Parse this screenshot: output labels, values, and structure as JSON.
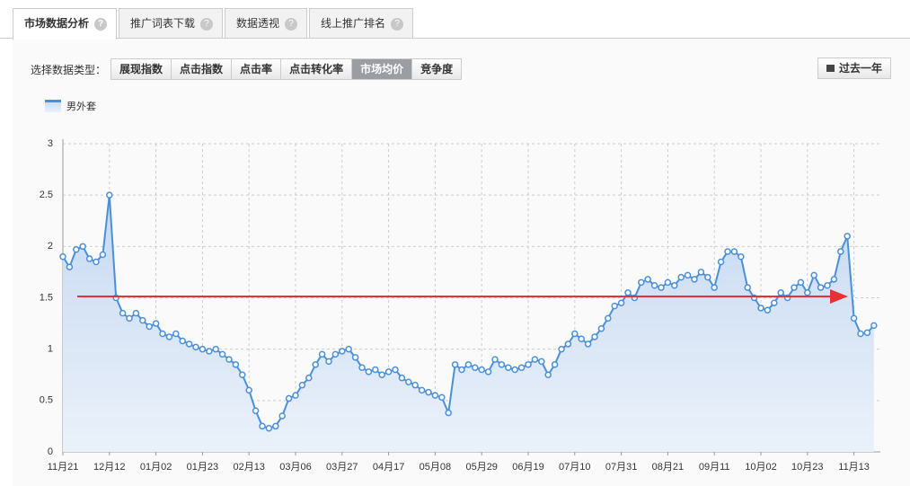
{
  "tabs": [
    "市场数据分析",
    "推广词表下载",
    "数据透视",
    "线上推广排名"
  ],
  "selector": {
    "label": "选择数据类型：",
    "buttons": [
      "展现指数",
      "点击指数",
      "点击率",
      "点击转化率",
      "市场均价",
      "竞争度"
    ],
    "active": 4,
    "period": "过去一年"
  },
  "chart_data": {
    "type": "line",
    "categories": [
      "11月21",
      null,
      null,
      null,
      null,
      null,
      null,
      "12月12",
      null,
      null,
      null,
      null,
      null,
      null,
      "01月02",
      null,
      null,
      null,
      null,
      null,
      null,
      "01月23",
      null,
      null,
      null,
      null,
      null,
      null,
      "02月13",
      null,
      null,
      null,
      null,
      null,
      null,
      "03月06",
      null,
      null,
      null,
      null,
      null,
      null,
      "03月27",
      null,
      null,
      null,
      null,
      null,
      null,
      "04月17",
      null,
      null,
      null,
      null,
      null,
      null,
      "05月08",
      null,
      null,
      null,
      null,
      null,
      null,
      "05月29",
      null,
      null,
      null,
      null,
      null,
      null,
      "06月19",
      null,
      null,
      null,
      null,
      null,
      null,
      "07月10",
      null,
      null,
      null,
      null,
      null,
      null,
      "07月31",
      null,
      null,
      null,
      null,
      null,
      null,
      "08月21",
      null,
      null,
      null,
      null,
      null,
      null,
      "09月11",
      null,
      null,
      null,
      null,
      null,
      null,
      "10月02",
      null,
      null,
      null,
      null,
      null,
      null,
      "10月23",
      null,
      null,
      null,
      null,
      null,
      null,
      "11月13",
      null,
      null,
      null
    ],
    "series": [
      {
        "name": "男外套",
        "color": "#4a90d9",
        "values": [
          1.9,
          1.8,
          1.97,
          2.0,
          1.88,
          1.85,
          1.92,
          2.5,
          1.5,
          1.35,
          1.3,
          1.35,
          1.28,
          1.22,
          1.25,
          1.15,
          1.12,
          1.15,
          1.08,
          1.05,
          1.02,
          1.0,
          0.98,
          1.0,
          0.95,
          0.9,
          0.85,
          0.75,
          0.6,
          0.4,
          0.25,
          0.23,
          0.25,
          0.35,
          0.52,
          0.55,
          0.65,
          0.72,
          0.85,
          0.95,
          0.88,
          0.95,
          0.98,
          1.0,
          0.92,
          0.82,
          0.78,
          0.8,
          0.75,
          0.78,
          0.8,
          0.72,
          0.68,
          0.65,
          0.6,
          0.58,
          0.55,
          0.53,
          0.38,
          0.85,
          0.8,
          0.85,
          0.82,
          0.8,
          0.78,
          0.9,
          0.85,
          0.82,
          0.8,
          0.82,
          0.85,
          0.9,
          0.88,
          0.75,
          0.85,
          1.0,
          1.05,
          1.15,
          1.1,
          1.05,
          1.12,
          1.2,
          1.3,
          1.42,
          1.45,
          1.55,
          1.5,
          1.65,
          1.68,
          1.62,
          1.6,
          1.65,
          1.62,
          1.7,
          1.72,
          1.68,
          1.75,
          1.7,
          1.6,
          1.85,
          1.95,
          1.95,
          1.9,
          1.6,
          1.5,
          1.4,
          1.38,
          1.45,
          1.55,
          1.5,
          1.6,
          1.65,
          1.55,
          1.72,
          1.6,
          1.62,
          1.68,
          1.95,
          2.1,
          1.3,
          1.15,
          1.16,
          1.23
        ]
      }
    ],
    "ylim": [
      0,
      3
    ],
    "yticks": [
      0,
      0.5,
      1,
      1.5,
      2,
      2.5,
      3
    ],
    "grid": true
  }
}
